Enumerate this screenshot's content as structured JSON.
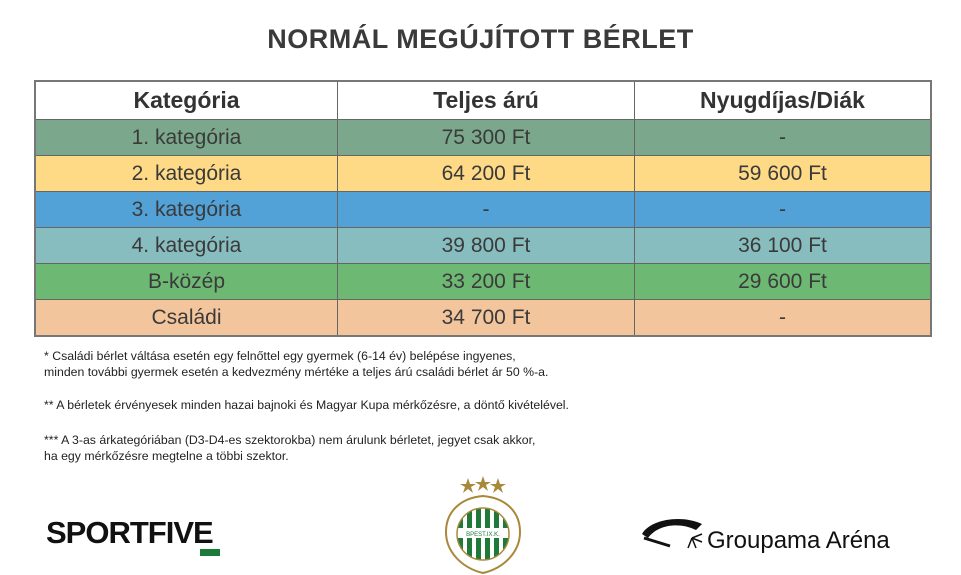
{
  "title": "NORMÁL MEGÚJÍTOTT BÉRLET",
  "table": {
    "headers": [
      "Kategória",
      "Teljes árú",
      "Nyugdíjas/Diák"
    ],
    "rows": [
      {
        "cells": [
          "1. kategória",
          "75 300 Ft",
          "-"
        ],
        "color": "#7ba88c"
      },
      {
        "cells": [
          "2. kategória",
          "64 200 Ft",
          "59 600 Ft"
        ],
        "color": "#fed986"
      },
      {
        "cells": [
          "3. kategória",
          "-",
          "-"
        ],
        "color": "#52a2d8"
      },
      {
        "cells": [
          "4. kategória",
          "39 800 Ft",
          "36 100 Ft"
        ],
        "color": "#88bdc0"
      },
      {
        "cells": [
          "B-közép",
          "33 200 Ft",
          "29 600 Ft"
        ],
        "color": "#6db974"
      },
      {
        "cells": [
          "Családi",
          "34 700 Ft",
          "-"
        ],
        "color": "#f2c59c"
      }
    ]
  },
  "notes": [
    [
      "* Családi bérlet váltása esetén egy felnőttel egy gyermek (6-14 év) belépése ingyenes,",
      "minden további gyermek esetén a kedvezmény mértéke a teljes árú családi bérlet ár 50 %-a."
    ],
    [
      "** A bérletek érvényesek minden hazai bajnoki és Magyar Kupa mérkőzésre, a döntő kivételével."
    ],
    [
      "*** A 3-as árkategóriában (D3-D4-es szektorokba) nem árulunk bérletet, jegyet csak akkor,",
      "ha egy mérkőzésre megtelne a többi szektor."
    ]
  ],
  "logos": {
    "sportfive": "SPORTFIVE",
    "ftc": "FERENCVÁROSI TORNA CLUB BPEST.IX.K. 1899",
    "arena": "Groupama Aréna"
  }
}
